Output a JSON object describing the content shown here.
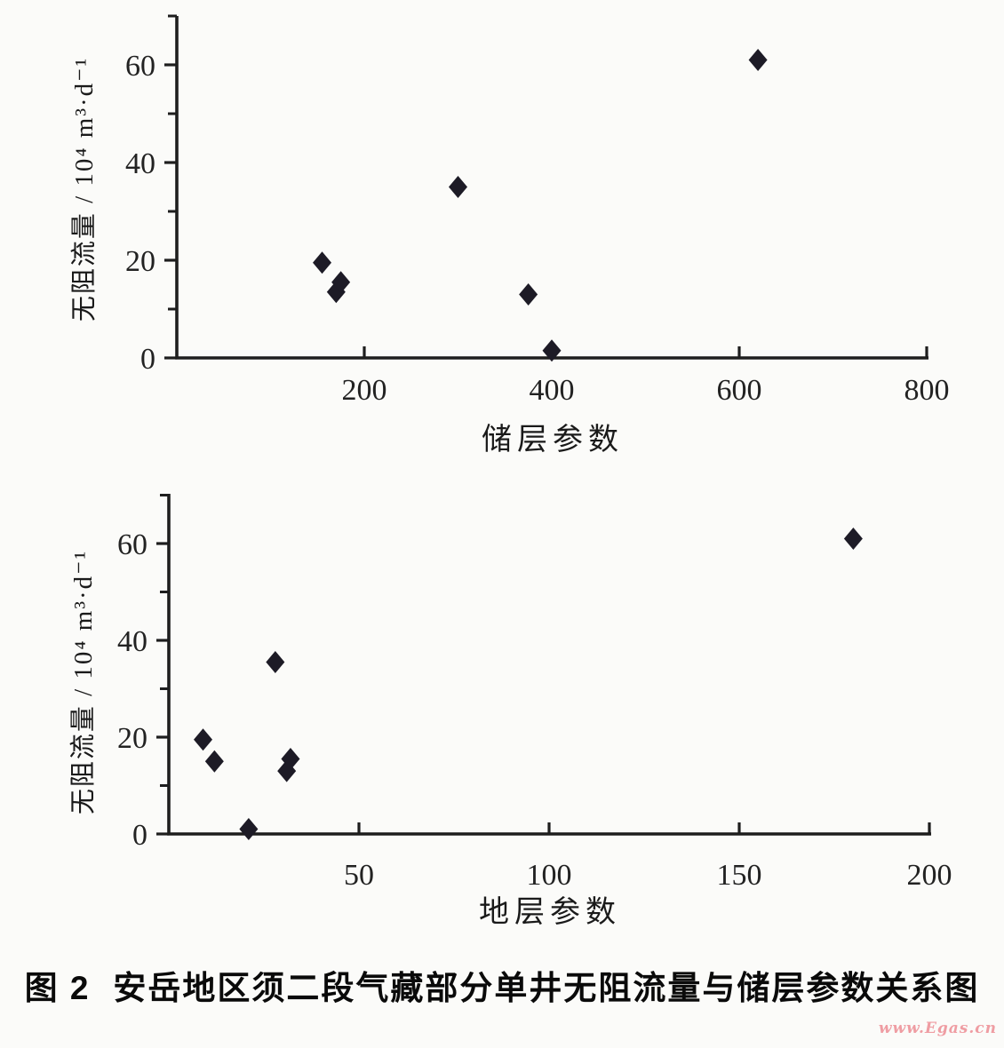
{
  "page": {
    "background": "#fbfbf9",
    "ink_color": "#1e1e1e",
    "marker_color": "#1d1b26"
  },
  "caption": {
    "label": "图 2",
    "text": "安岳地区须二段气藏部分单井无阻流量与储层参数关系图"
  },
  "watermark": {
    "text": "www.Egas.cn",
    "color": "#ef9da3"
  },
  "chart_data": [
    {
      "type": "scatter",
      "title": "",
      "xlabel": "储层参数",
      "ylabel": "无阻流量 / 10⁴ m³·d⁻¹",
      "xlim": [
        0,
        810
      ],
      "ylim": [
        0,
        70
      ],
      "x_ticks": [
        200,
        400,
        600,
        800
      ],
      "y_ticks": [
        0,
        20,
        40,
        60
      ],
      "y_minor_ticks": [
        10,
        30,
        50,
        70
      ],
      "grid": false,
      "legend": "none",
      "marker": "diamond",
      "marker_color": "#1d1b26",
      "points": [
        {
          "x": 155,
          "y": 19.5
        },
        {
          "x": 170,
          "y": 13.5
        },
        {
          "x": 175,
          "y": 15.5
        },
        {
          "x": 300,
          "y": 35
        },
        {
          "x": 375,
          "y": 13
        },
        {
          "x": 400,
          "y": 1.5
        },
        {
          "x": 620,
          "y": 61
        }
      ]
    },
    {
      "type": "scatter",
      "title": "",
      "xlabel": "地层参数",
      "ylabel": "无阻流量 / 10⁴ m³·d⁻¹",
      "xlim": [
        0,
        205
      ],
      "ylim": [
        0,
        70
      ],
      "x_ticks": [
        50,
        100,
        150,
        200
      ],
      "y_ticks": [
        0,
        20,
        40,
        60
      ],
      "y_minor_ticks": [
        10,
        30,
        50,
        70
      ],
      "grid": false,
      "legend": "none",
      "marker": "diamond",
      "marker_color": "#1d1b26",
      "points": [
        {
          "x": 9,
          "y": 19.5
        },
        {
          "x": 12,
          "y": 15
        },
        {
          "x": 21,
          "y": 1
        },
        {
          "x": 28,
          "y": 35.5
        },
        {
          "x": 31,
          "y": 13
        },
        {
          "x": 32,
          "y": 15.5
        },
        {
          "x": 180,
          "y": 61
        }
      ]
    }
  ]
}
